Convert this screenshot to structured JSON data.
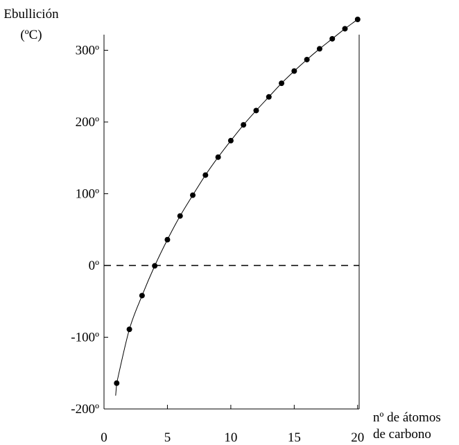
{
  "chart_data": {
    "type": "scatter",
    "title": "",
    "ylabel_line1": "Ebullición",
    "ylabel_line2": "(ºC)",
    "xlabel_line1": "nº de átomos",
    "xlabel_line2": "de carbono",
    "xlim": [
      0,
      20
    ],
    "ylim": [
      -200,
      325
    ],
    "x_ticks": [
      0,
      5,
      10,
      15,
      20
    ],
    "x_tick_labels": [
      "0",
      "5",
      "10",
      "15",
      "20"
    ],
    "y_ticks": [
      -200,
      -100,
      0,
      100,
      200,
      300
    ],
    "y_tick_labels": [
      "-200º",
      "-100º",
      "0º",
      "100º",
      "200º",
      "300º"
    ],
    "reference_line_y": 0,
    "grid": false,
    "series": [
      {
        "x": [
          1,
          2,
          3,
          4,
          5,
          6,
          7,
          8,
          9,
          10,
          11,
          12,
          13,
          14,
          15,
          16,
          17,
          18,
          19,
          20
        ],
        "values": [
          -164,
          -89,
          -42,
          -0.5,
          36,
          69,
          98,
          126,
          151,
          174,
          196,
          216,
          235,
          254,
          271,
          287,
          302,
          316,
          330,
          343
        ]
      }
    ],
    "colors": {
      "axis": "#000000",
      "points": "#000000",
      "curve": "#000000"
    }
  }
}
